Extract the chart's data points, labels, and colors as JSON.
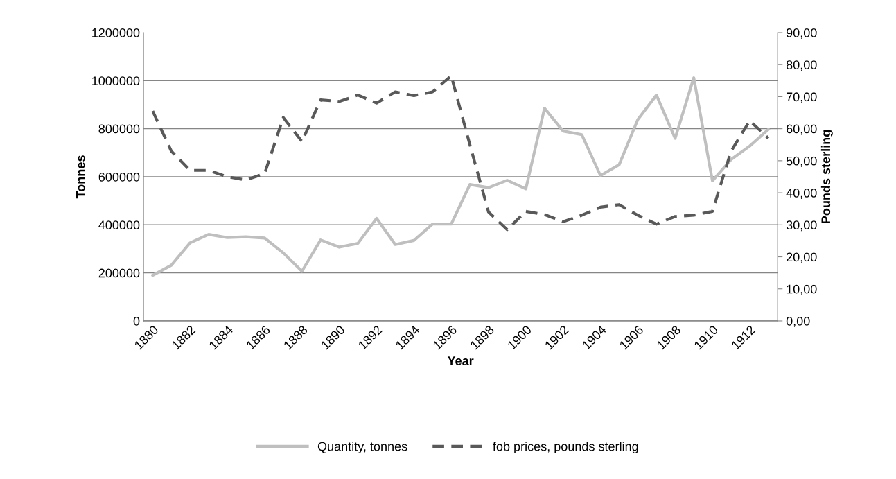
{
  "chart_data": {
    "type": "line",
    "xlabel": "Year",
    "ylabel": "Tonnes",
    "y2label": "Pounds sterling",
    "categories": [
      "1880",
      null,
      "1882",
      null,
      "1884",
      null,
      "1886",
      null,
      "1888",
      null,
      "1890",
      null,
      "1892",
      null,
      "1894",
      null,
      "1896",
      null,
      "1898",
      null,
      "1900",
      null,
      "1902",
      null,
      "1904",
      null,
      "1906",
      null,
      "1908",
      null,
      "1910",
      null,
      "1912",
      null
    ],
    "series": [
      {
        "name": "Quantity, tonnes",
        "color": "#bfbfbf",
        "line_style": "solid",
        "values": [
          190000,
          232000,
          325000,
          360000,
          347000,
          350000,
          345000,
          283000,
          207000,
          337000,
          307000,
          323000,
          427000,
          318000,
          335000,
          403000,
          403000,
          568000,
          555000,
          585000,
          550000,
          885000,
          790000,
          775000,
          605000,
          650000,
          838000,
          940000,
          760000,
          1012000,
          583000,
          672000,
          728000,
          797000
        ]
      },
      {
        "name": "fob prices, pounds sterling",
        "color": "#595959",
        "line_style": "dashed",
        "axis": "y2",
        "values": [
          65.5,
          53,
          47,
          47,
          45,
          44,
          46,
          63.5,
          56,
          69,
          68.5,
          70.5,
          68,
          71.5,
          70.3,
          71.5,
          76.5,
          55,
          34,
          28.5,
          34.2,
          33.2,
          31,
          33,
          35.5,
          36.3,
          33,
          30.2,
          32.6,
          33,
          34.2,
          53,
          62.5,
          57
        ]
      }
    ],
    "ylim": [
      0,
      1200000
    ],
    "yticks": [
      0,
      200000,
      400000,
      600000,
      800000,
      1000000,
      1200000
    ],
    "y2lim": [
      0,
      90
    ],
    "y2ticks": [
      {
        "value": 0,
        "label": "0,00"
      },
      {
        "value": 10,
        "label": "10,00"
      },
      {
        "value": 20,
        "label": "20,00"
      },
      {
        "value": 30,
        "label": "30,00"
      },
      {
        "value": 40,
        "label": "40,00"
      },
      {
        "value": 50,
        "label": "50,00"
      },
      {
        "value": 60,
        "label": "60,00"
      },
      {
        "value": 70,
        "label": "70,00"
      },
      {
        "value": 80,
        "label": "80,00"
      },
      {
        "value": 90,
        "label": "90,00"
      }
    ],
    "grid": "y",
    "legend": "bottom",
    "marker": "none"
  }
}
